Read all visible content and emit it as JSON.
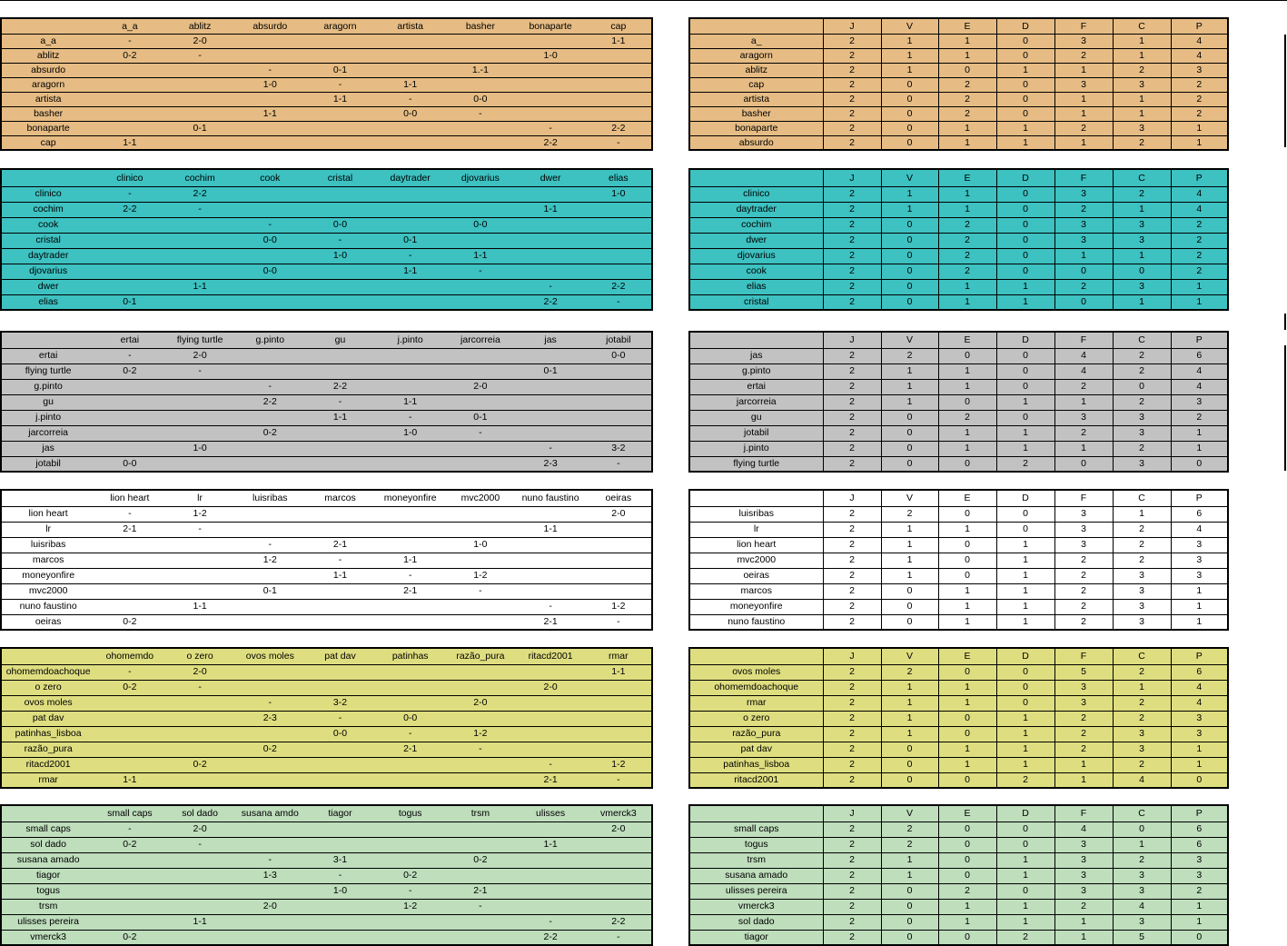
{
  "colors": {
    "group1": "#E6BC84",
    "group2": "#3DC1C1",
    "group3": "#C2C2C2",
    "group4": "#FFFFFF",
    "group5": "#DEDE80",
    "group6": "#BEDEBC"
  },
  "groups": [
    {
      "color_key": "group1",
      "cols": [
        "a_a",
        "ablitz",
        "absurdo",
        "aragorn",
        "artista",
        "basher",
        "bonaparte",
        "cap"
      ],
      "rows": [
        [
          "a_a",
          "-",
          "2-0",
          "",
          "",
          "",
          "",
          "",
          "1-1"
        ],
        [
          "ablitz",
          "0-2",
          "-",
          "",
          "",
          "",
          "",
          "1-0",
          ""
        ],
        [
          "absurdo",
          "",
          "",
          "-",
          "0-1",
          "",
          "1.-1",
          "",
          ""
        ],
        [
          "aragorn",
          "",
          "",
          "1-0",
          "-",
          "1-1",
          "",
          "",
          ""
        ],
        [
          "artista",
          "",
          "",
          "",
          "1-1",
          "-",
          "0-0",
          "",
          ""
        ],
        [
          "basher",
          "",
          "",
          "1-1",
          "",
          "0-0",
          "-",
          "",
          ""
        ],
        [
          "bonaparte",
          "",
          "0-1",
          "",
          "",
          "",
          "",
          "-",
          "2-2"
        ],
        [
          "cap",
          "1-1",
          "",
          "",
          "",
          "",
          "",
          "2-2",
          "-"
        ]
      ],
      "standings_header": [
        "",
        "J",
        "V",
        "E",
        "D",
        "F",
        "C",
        "P"
      ],
      "standings": [
        [
          "a_",
          "2",
          "1",
          "1",
          "0",
          "3",
          "1",
          "4"
        ],
        [
          "aragorn",
          "2",
          "1",
          "1",
          "0",
          "2",
          "1",
          "4"
        ],
        [
          "ablitz",
          "2",
          "1",
          "0",
          "1",
          "1",
          "2",
          "3"
        ],
        [
          "cap",
          "2",
          "0",
          "2",
          "0",
          "3",
          "3",
          "2"
        ],
        [
          "artista",
          "2",
          "0",
          "2",
          "0",
          "1",
          "1",
          "2"
        ],
        [
          "basher",
          "2",
          "0",
          "2",
          "0",
          "1",
          "1",
          "2"
        ],
        [
          "bonaparte",
          "2",
          "0",
          "1",
          "1",
          "2",
          "3",
          "1"
        ],
        [
          "absurdo",
          "2",
          "0",
          "1",
          "1",
          "1",
          "2",
          "1"
        ]
      ]
    },
    {
      "color_key": "group2",
      "cols": [
        "clinico",
        "cochim",
        "cook",
        "cristal",
        "daytrader",
        "djovarius",
        "dwer",
        "elias"
      ],
      "rows": [
        [
          "clinico",
          "-",
          "2-2",
          "",
          "",
          "",
          "",
          "",
          "1-0"
        ],
        [
          "cochim",
          "2-2",
          "-",
          "",
          "",
          "",
          "",
          "1-1",
          ""
        ],
        [
          "cook",
          "",
          "",
          "-",
          "0-0",
          "",
          "0-0",
          "",
          ""
        ],
        [
          "cristal",
          "",
          "",
          "0-0",
          "-",
          "0-1",
          "",
          "",
          ""
        ],
        [
          "daytrader",
          "",
          "",
          "",
          "1-0",
          "-",
          "1-1",
          "",
          ""
        ],
        [
          "djovarius",
          "",
          "",
          "0-0",
          "",
          "1-1",
          "-",
          "",
          ""
        ],
        [
          "dwer",
          "",
          "1-1",
          "",
          "",
          "",
          "",
          "-",
          "2-2"
        ],
        [
          "elias",
          "0-1",
          "",
          "",
          "",
          "",
          "",
          "2-2",
          "-"
        ]
      ],
      "standings_header": [
        "",
        "J",
        "V",
        "E",
        "D",
        "F",
        "C",
        "P"
      ],
      "standings": [
        [
          "clinico",
          "2",
          "1",
          "1",
          "0",
          "3",
          "2",
          "4"
        ],
        [
          "daytrader",
          "2",
          "1",
          "1",
          "0",
          "2",
          "1",
          "4"
        ],
        [
          "cochim",
          "2",
          "0",
          "2",
          "0",
          "3",
          "3",
          "2"
        ],
        [
          "dwer",
          "2",
          "0",
          "2",
          "0",
          "3",
          "3",
          "2"
        ],
        [
          "djovarius",
          "2",
          "0",
          "2",
          "0",
          "1",
          "1",
          "2"
        ],
        [
          "cook",
          "2",
          "0",
          "2",
          "0",
          "0",
          "0",
          "2"
        ],
        [
          "elias",
          "2",
          "0",
          "1",
          "1",
          "2",
          "3",
          "1"
        ],
        [
          "cristal",
          "2",
          "0",
          "1",
          "1",
          "0",
          "1",
          "1"
        ]
      ]
    },
    {
      "color_key": "group3",
      "cols": [
        "ertai",
        "flying turtle",
        "g.pinto",
        "gu",
        "j.pinto",
        "jarcorreia",
        "jas",
        "jotabil"
      ],
      "rows": [
        [
          "ertai",
          "-",
          "2-0",
          "",
          "",
          "",
          "",
          "",
          "0-0"
        ],
        [
          "flying turtle",
          "0-2",
          "-",
          "",
          "",
          "",
          "",
          "0-1",
          ""
        ],
        [
          "g.pinto",
          "",
          "",
          "-",
          "2-2",
          "",
          "2-0",
          "",
          ""
        ],
        [
          "gu",
          "",
          "",
          "2-2",
          "-",
          "1-1",
          "",
          "",
          ""
        ],
        [
          "j.pinto",
          "",
          "",
          "",
          "1-1",
          "-",
          "0-1",
          "",
          ""
        ],
        [
          "jarcorreia",
          "",
          "",
          "0-2",
          "",
          "1-0",
          "-",
          "",
          ""
        ],
        [
          "jas",
          "",
          "1-0",
          "",
          "",
          "",
          "",
          "-",
          "3-2"
        ],
        [
          "jotabil",
          "0-0",
          "",
          "",
          "",
          "",
          "",
          "2-3",
          "-"
        ]
      ],
      "standings_header": [
        "",
        "J",
        "V",
        "E",
        "D",
        "F",
        "C",
        "P"
      ],
      "standings": [
        [
          "jas",
          "2",
          "2",
          "0",
          "0",
          "4",
          "2",
          "6"
        ],
        [
          "g.pinto",
          "2",
          "1",
          "1",
          "0",
          "4",
          "2",
          "4"
        ],
        [
          "ertai",
          "2",
          "1",
          "1",
          "0",
          "2",
          "0",
          "4"
        ],
        [
          "jarcorreia",
          "2",
          "1",
          "0",
          "1",
          "1",
          "2",
          "3"
        ],
        [
          "gu",
          "2",
          "0",
          "2",
          "0",
          "3",
          "3",
          "2"
        ],
        [
          "jotabil",
          "2",
          "0",
          "1",
          "1",
          "2",
          "3",
          "1"
        ],
        [
          "j.pinto",
          "2",
          "0",
          "1",
          "1",
          "1",
          "2",
          "1"
        ],
        [
          "flying turtle",
          "2",
          "0",
          "0",
          "2",
          "0",
          "3",
          "0"
        ]
      ]
    },
    {
      "color_key": "group4",
      "cols": [
        "lion heart",
        "lr",
        "luisribas",
        "marcos",
        "moneyonfire",
        "mvc2000",
        "nuno faustino",
        "oeiras"
      ],
      "rows": [
        [
          "lion heart",
          "-",
          "1-2",
          "",
          "",
          "",
          "",
          "",
          "2-0"
        ],
        [
          "lr",
          "2-1",
          "-",
          "",
          "",
          "",
          "",
          "1-1",
          ""
        ],
        [
          "luisribas",
          "",
          "",
          "-",
          "2-1",
          "",
          "1-0",
          "",
          ""
        ],
        [
          "marcos",
          "",
          "",
          "1-2",
          "-",
          "1-1",
          "",
          "",
          ""
        ],
        [
          "moneyonfire",
          "",
          "",
          "",
          "1-1",
          "-",
          "1-2",
          "",
          ""
        ],
        [
          "mvc2000",
          "",
          "",
          "0-1",
          "",
          "2-1",
          "-",
          "",
          ""
        ],
        [
          "nuno faustino",
          "",
          "1-1",
          "",
          "",
          "",
          "",
          "-",
          "1-2"
        ],
        [
          "oeiras",
          "0-2",
          "",
          "",
          "",
          "",
          "",
          "2-1",
          "-"
        ]
      ],
      "standings_header": [
        "",
        "J",
        "V",
        "E",
        "D",
        "F",
        "C",
        "P"
      ],
      "standings": [
        [
          "luisribas",
          "2",
          "2",
          "0",
          "0",
          "3",
          "1",
          "6"
        ],
        [
          "lr",
          "2",
          "1",
          "1",
          "0",
          "3",
          "2",
          "4"
        ],
        [
          "lion heart",
          "2",
          "1",
          "0",
          "1",
          "3",
          "2",
          "3"
        ],
        [
          "mvc2000",
          "2",
          "1",
          "0",
          "1",
          "2",
          "2",
          "3"
        ],
        [
          "oeiras",
          "2",
          "1",
          "0",
          "1",
          "2",
          "3",
          "3"
        ],
        [
          "marcos",
          "2",
          "0",
          "1",
          "1",
          "2",
          "3",
          "1"
        ],
        [
          "moneyonfire",
          "2",
          "0",
          "1",
          "1",
          "2",
          "3",
          "1"
        ],
        [
          "nuno faustino",
          "2",
          "0",
          "1",
          "1",
          "2",
          "3",
          "1"
        ]
      ]
    },
    {
      "color_key": "group5",
      "cols": [
        "ohomemdo",
        "o zero",
        "ovos moles",
        "pat dav",
        "patinhas",
        "razão_pura",
        "ritacd2001",
        "rmar"
      ],
      "rows": [
        [
          "ohomemdoachoque",
          "-",
          "2-0",
          "",
          "",
          "",
          "",
          "",
          "1-1"
        ],
        [
          "o zero",
          "0-2",
          "-",
          "",
          "",
          "",
          "",
          "2-0",
          ""
        ],
        [
          "ovos moles",
          "",
          "",
          "-",
          "3-2",
          "",
          "2-0",
          "",
          ""
        ],
        [
          "pat dav",
          "",
          "",
          "2-3",
          "-",
          "0-0",
          "",
          "",
          ""
        ],
        [
          "patinhas_lisboa",
          "",
          "",
          "",
          "0-0",
          "-",
          "1-2",
          "",
          ""
        ],
        [
          "razão_pura",
          "",
          "",
          "0-2",
          "",
          "2-1",
          "-",
          "",
          ""
        ],
        [
          "ritacd2001",
          "",
          "0-2",
          "",
          "",
          "",
          "",
          "-",
          "1-2"
        ],
        [
          "rmar",
          "1-1",
          "",
          "",
          "",
          "",
          "",
          "2-1",
          "-"
        ]
      ],
      "standings_header": [
        "",
        "J",
        "V",
        "E",
        "D",
        "F",
        "C",
        "P"
      ],
      "standings": [
        [
          "ovos moles",
          "2",
          "2",
          "0",
          "0",
          "5",
          "2",
          "6"
        ],
        [
          "ohomemdoachoque",
          "2",
          "1",
          "1",
          "0",
          "3",
          "1",
          "4"
        ],
        [
          "rmar",
          "2",
          "1",
          "1",
          "0",
          "3",
          "2",
          "4"
        ],
        [
          "o zero",
          "2",
          "1",
          "0",
          "1",
          "2",
          "2",
          "3"
        ],
        [
          "razão_pura",
          "2",
          "1",
          "0",
          "1",
          "2",
          "3",
          "3"
        ],
        [
          "pat dav",
          "2",
          "0",
          "1",
          "1",
          "2",
          "3",
          "1"
        ],
        [
          "patinhas_lisboa",
          "2",
          "0",
          "1",
          "1",
          "1",
          "2",
          "1"
        ],
        [
          "ritacd2001",
          "2",
          "0",
          "0",
          "2",
          "1",
          "4",
          "0"
        ]
      ]
    },
    {
      "color_key": "group6",
      "cols": [
        "small caps",
        "sol dado",
        "susana amdo",
        "tiagor",
        "togus",
        "trsm",
        "ulisses",
        "vmerck3"
      ],
      "rows": [
        [
          "small caps",
          "-",
          "2-0",
          "",
          "",
          "",
          "",
          "",
          "2-0"
        ],
        [
          "sol dado",
          "0-2",
          "-",
          "",
          "",
          "",
          "",
          "1-1",
          ""
        ],
        [
          "susana amado",
          "",
          "",
          "-",
          "3-1",
          "",
          "0-2",
          "",
          ""
        ],
        [
          "tiagor",
          "",
          "",
          "1-3",
          "-",
          "0-2",
          "",
          "",
          ""
        ],
        [
          "togus",
          "",
          "",
          "",
          "1-0",
          "-",
          "2-1",
          "",
          ""
        ],
        [
          "trsm",
          "",
          "",
          "2-0",
          "",
          "1-2",
          "-",
          "",
          ""
        ],
        [
          "ulisses pereira",
          "",
          "1-1",
          "",
          "",
          "",
          "",
          "-",
          "2-2"
        ],
        [
          "vmerck3",
          "0-2",
          "",
          "",
          "",
          "",
          "",
          "2-2",
          "-"
        ]
      ],
      "standings_header": [
        "",
        "J",
        "V",
        "E",
        "D",
        "F",
        "C",
        "P"
      ],
      "standings": [
        [
          "small caps",
          "2",
          "2",
          "0",
          "0",
          "4",
          "0",
          "6"
        ],
        [
          "togus",
          "2",
          "2",
          "0",
          "0",
          "3",
          "1",
          "6"
        ],
        [
          "trsm",
          "2",
          "1",
          "0",
          "1",
          "3",
          "2",
          "3"
        ],
        [
          "susana amado",
          "2",
          "1",
          "0",
          "1",
          "3",
          "3",
          "3"
        ],
        [
          "ulisses pereira",
          "2",
          "0",
          "2",
          "0",
          "3",
          "3",
          "2"
        ],
        [
          "vmerck3",
          "2",
          "0",
          "1",
          "1",
          "2",
          "4",
          "1"
        ],
        [
          "sol dado",
          "2",
          "0",
          "1",
          "1",
          "1",
          "3",
          "1"
        ],
        [
          "tiagor",
          "2",
          "0",
          "0",
          "2",
          "1",
          "5",
          "0"
        ]
      ]
    }
  ]
}
